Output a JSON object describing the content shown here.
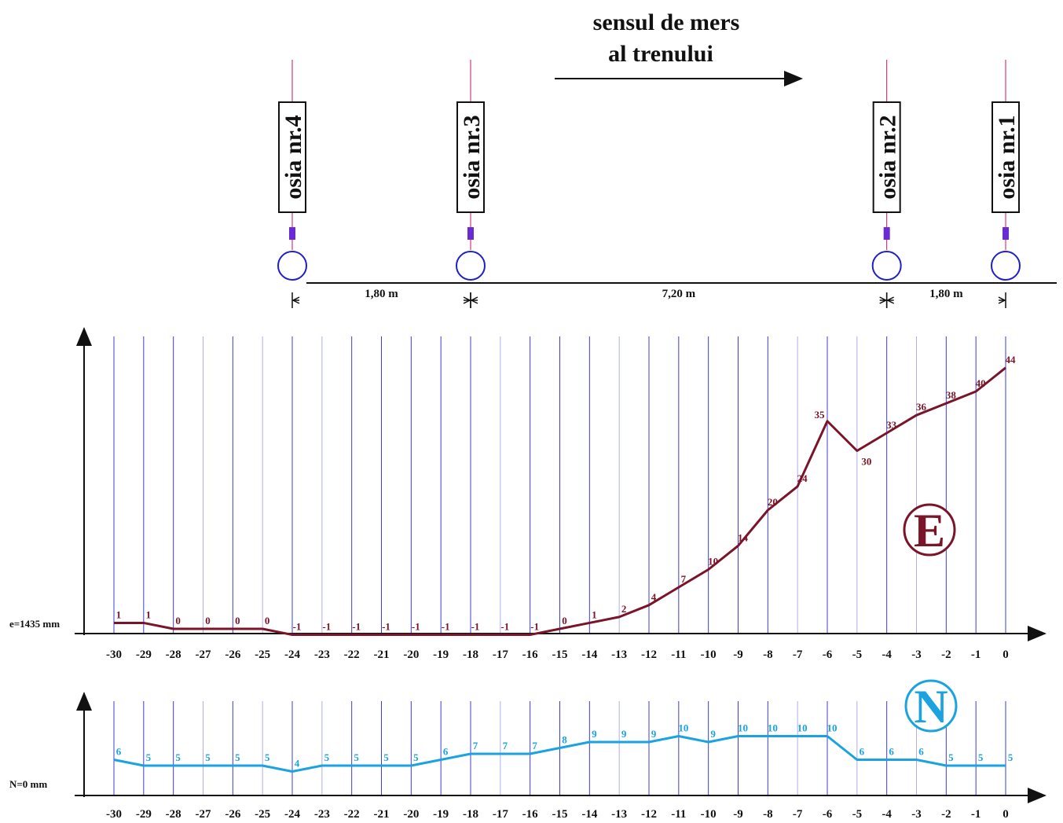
{
  "header": {
    "direction_line1": "sensul de mers",
    "direction_line2": "al trenului"
  },
  "axles": [
    {
      "label": "osia nr.4",
      "x": -24
    },
    {
      "label": "osia nr.3",
      "x": -18
    },
    {
      "label": "osia nr.2",
      "x": -4
    },
    {
      "label": "osia nr.1",
      "x": 0
    }
  ],
  "distances": [
    "1,80 m",
    "7,20 m",
    "1,80 m"
  ],
  "colors": {
    "e_series": "#7a1428",
    "n_series": "#1aa3e0",
    "grid": "#3c3cd8",
    "grid_light": "#b0b0e8",
    "wheel": "#2020c8",
    "axle_mark": "#d01060",
    "axle_box": "#6a2ad8"
  },
  "chart_data": [
    {
      "type": "line",
      "emblem": "E",
      "baseline_label": "e=1435 mm",
      "categories": [
        "-30",
        "-29",
        "-28",
        "-27",
        "-26",
        "-25",
        "-24",
        "-23",
        "-22",
        "-21",
        "-20",
        "-19",
        "-18",
        "-17",
        "-16",
        "-15",
        "-14",
        "-13",
        "-12",
        "-11",
        "-10",
        "-9",
        "-8",
        "-7",
        "-6",
        "-5",
        "-4",
        "-3",
        "-2",
        "-1",
        "0"
      ],
      "x": [
        -30,
        -29,
        -28,
        -27,
        -26,
        -25,
        -24,
        -23,
        -22,
        -21,
        -20,
        -19,
        -18,
        -17,
        -16,
        -15,
        -14,
        -13,
        -12,
        -11,
        -10,
        -9,
        -8,
        -7,
        -6,
        -5,
        -4,
        -3,
        -2,
        -1,
        0
      ],
      "values": [
        1,
        1,
        0,
        0,
        0,
        0,
        -1,
        -1,
        -1,
        -1,
        -1,
        -1,
        -1,
        -1,
        -1,
        0,
        1,
        2,
        4,
        7,
        10,
        14,
        20,
        24,
        35,
        30,
        33,
        36,
        38,
        40,
        44
      ],
      "ylim": [
        -2,
        50
      ]
    },
    {
      "type": "line",
      "emblem": "N",
      "baseline_label": "N=0 mm",
      "categories": [
        "-30",
        "-29",
        "-28",
        "-27",
        "-26",
        "-25",
        "-24",
        "-23",
        "-22",
        "-21",
        "-20",
        "-19",
        "-18",
        "-17",
        "-16",
        "-15",
        "-14",
        "-13",
        "-12",
        "-11",
        "-10",
        "-9",
        "-8",
        "-7",
        "-6",
        "-5",
        "-4",
        "-3",
        "-2",
        "-1",
        "0"
      ],
      "x": [
        -30,
        -29,
        -28,
        -27,
        -26,
        -25,
        -24,
        -23,
        -22,
        -21,
        -20,
        -19,
        -18,
        -17,
        -16,
        -15,
        -14,
        -13,
        -12,
        -11,
        -10,
        -9,
        -8,
        -7,
        -6,
        -5,
        -4,
        -3,
        -2,
        -1,
        0
      ],
      "values": [
        6,
        5,
        5,
        5,
        5,
        5,
        4,
        5,
        5,
        5,
        5,
        6,
        7,
        7,
        7,
        8,
        9,
        9,
        9,
        10,
        9,
        10,
        10,
        10,
        10,
        6,
        6,
        6,
        5,
        5,
        5
      ],
      "ylim": [
        0,
        16
      ]
    }
  ]
}
